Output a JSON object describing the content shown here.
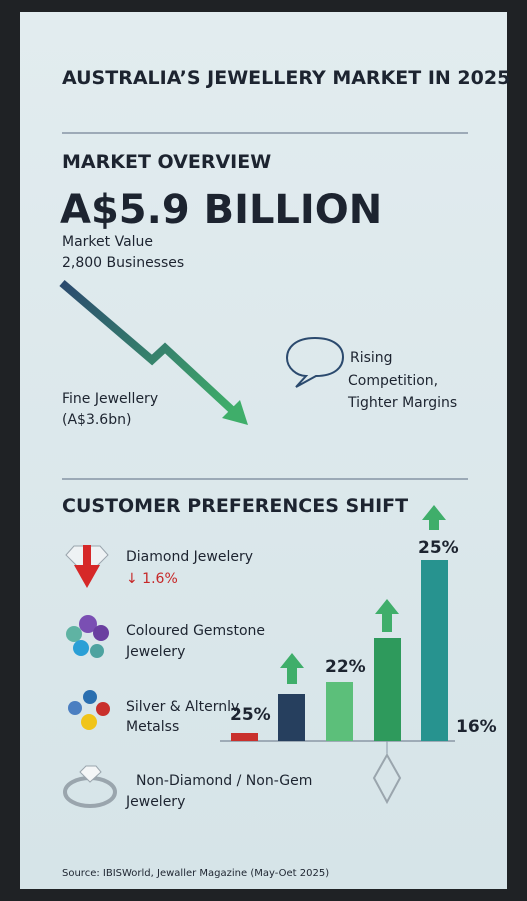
{
  "header": {
    "title": "AUSTRALIA’S JEWELLERY MARKET IN 2025"
  },
  "overview": {
    "heading": "MARKET OVERVIEW",
    "headline": "A$5.9 BILLION",
    "details": [
      "Market Value",
      "2,800 Businesses"
    ],
    "fine_jewellery": [
      "Fine Jewellery",
      "(A$3.6bn)"
    ],
    "callout": [
      "Rising",
      "Competition,",
      "Tighter Margins"
    ]
  },
  "preferences": {
    "heading": "CUSTOMER PREFERENCES SHIFT",
    "items": [
      {
        "lines": [
          "Diamond Jewelery"
        ],
        "change": "↓ 1.6%"
      },
      {
        "lines": [
          "Coloured Gemstone",
          "Jewelery"
        ]
      },
      {
        "lines": [
          "Silver & Alternlv",
          "Metalss"
        ]
      },
      {
        "lines": [
          "Non-Diamond / Non-Gem",
          "Jewelery"
        ]
      }
    ],
    "bar_labels": [
      "25%",
      "22%",
      "25%",
      "16%"
    ]
  },
  "footer": {
    "source": "Source: IBISWorld, Jewaller Magazine (May-Oet 2025)"
  }
}
